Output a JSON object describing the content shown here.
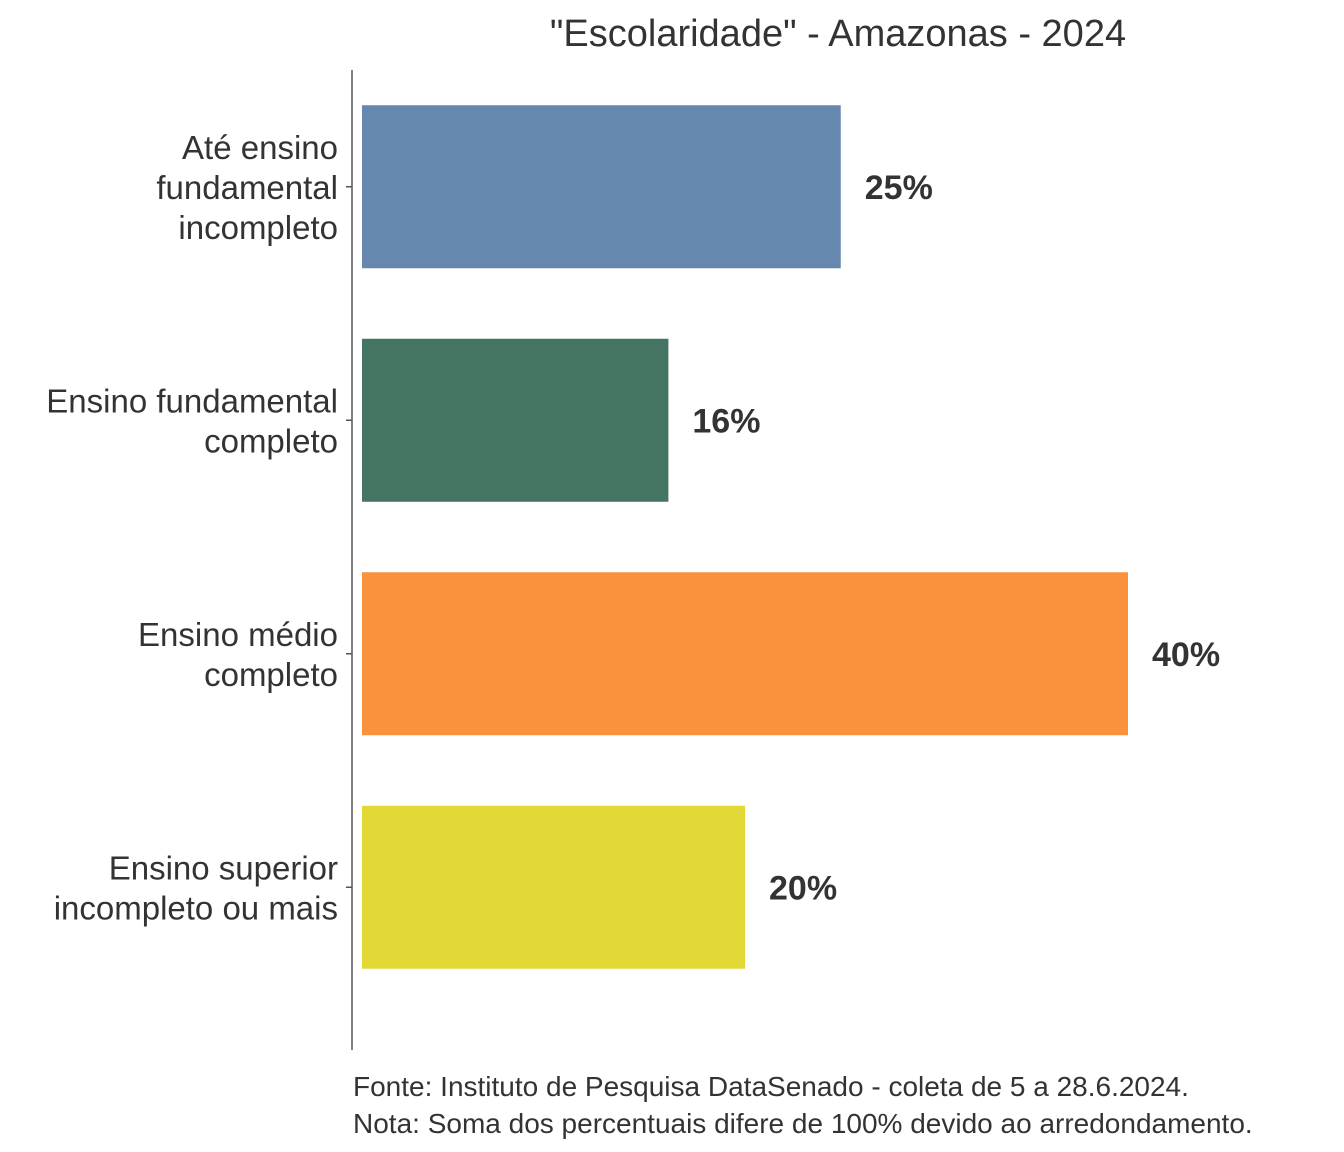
{
  "chart_data": {
    "type": "bar",
    "orientation": "horizontal",
    "title": "\"Escolaridade\" - Amazonas - 2024",
    "categories": [
      [
        "Até ensino",
        "fundamental",
        "incompleto"
      ],
      [
        "Ensino fundamental",
        "completo"
      ],
      [
        "Ensino médio",
        "completo"
      ],
      [
        "Ensino superior",
        "incompleto ou mais"
      ]
    ],
    "values": [
      25,
      16,
      40,
      20
    ],
    "value_labels": [
      "25%",
      "16%",
      "40%",
      "20%"
    ],
    "colors": [
      "#6688ae",
      "#447563",
      "#f9913d",
      "#e3d936"
    ],
    "xlim": [
      0,
      40
    ],
    "grid": false,
    "legend": "none",
    "xlabel": "",
    "ylabel": ""
  },
  "footer": {
    "source": "Fonte: Instituto de Pesquisa DataSenado - coleta de 5 a 28.6.2024.",
    "note": "Nota: Soma dos percentuais difere de 100% devido ao arredondamento."
  }
}
